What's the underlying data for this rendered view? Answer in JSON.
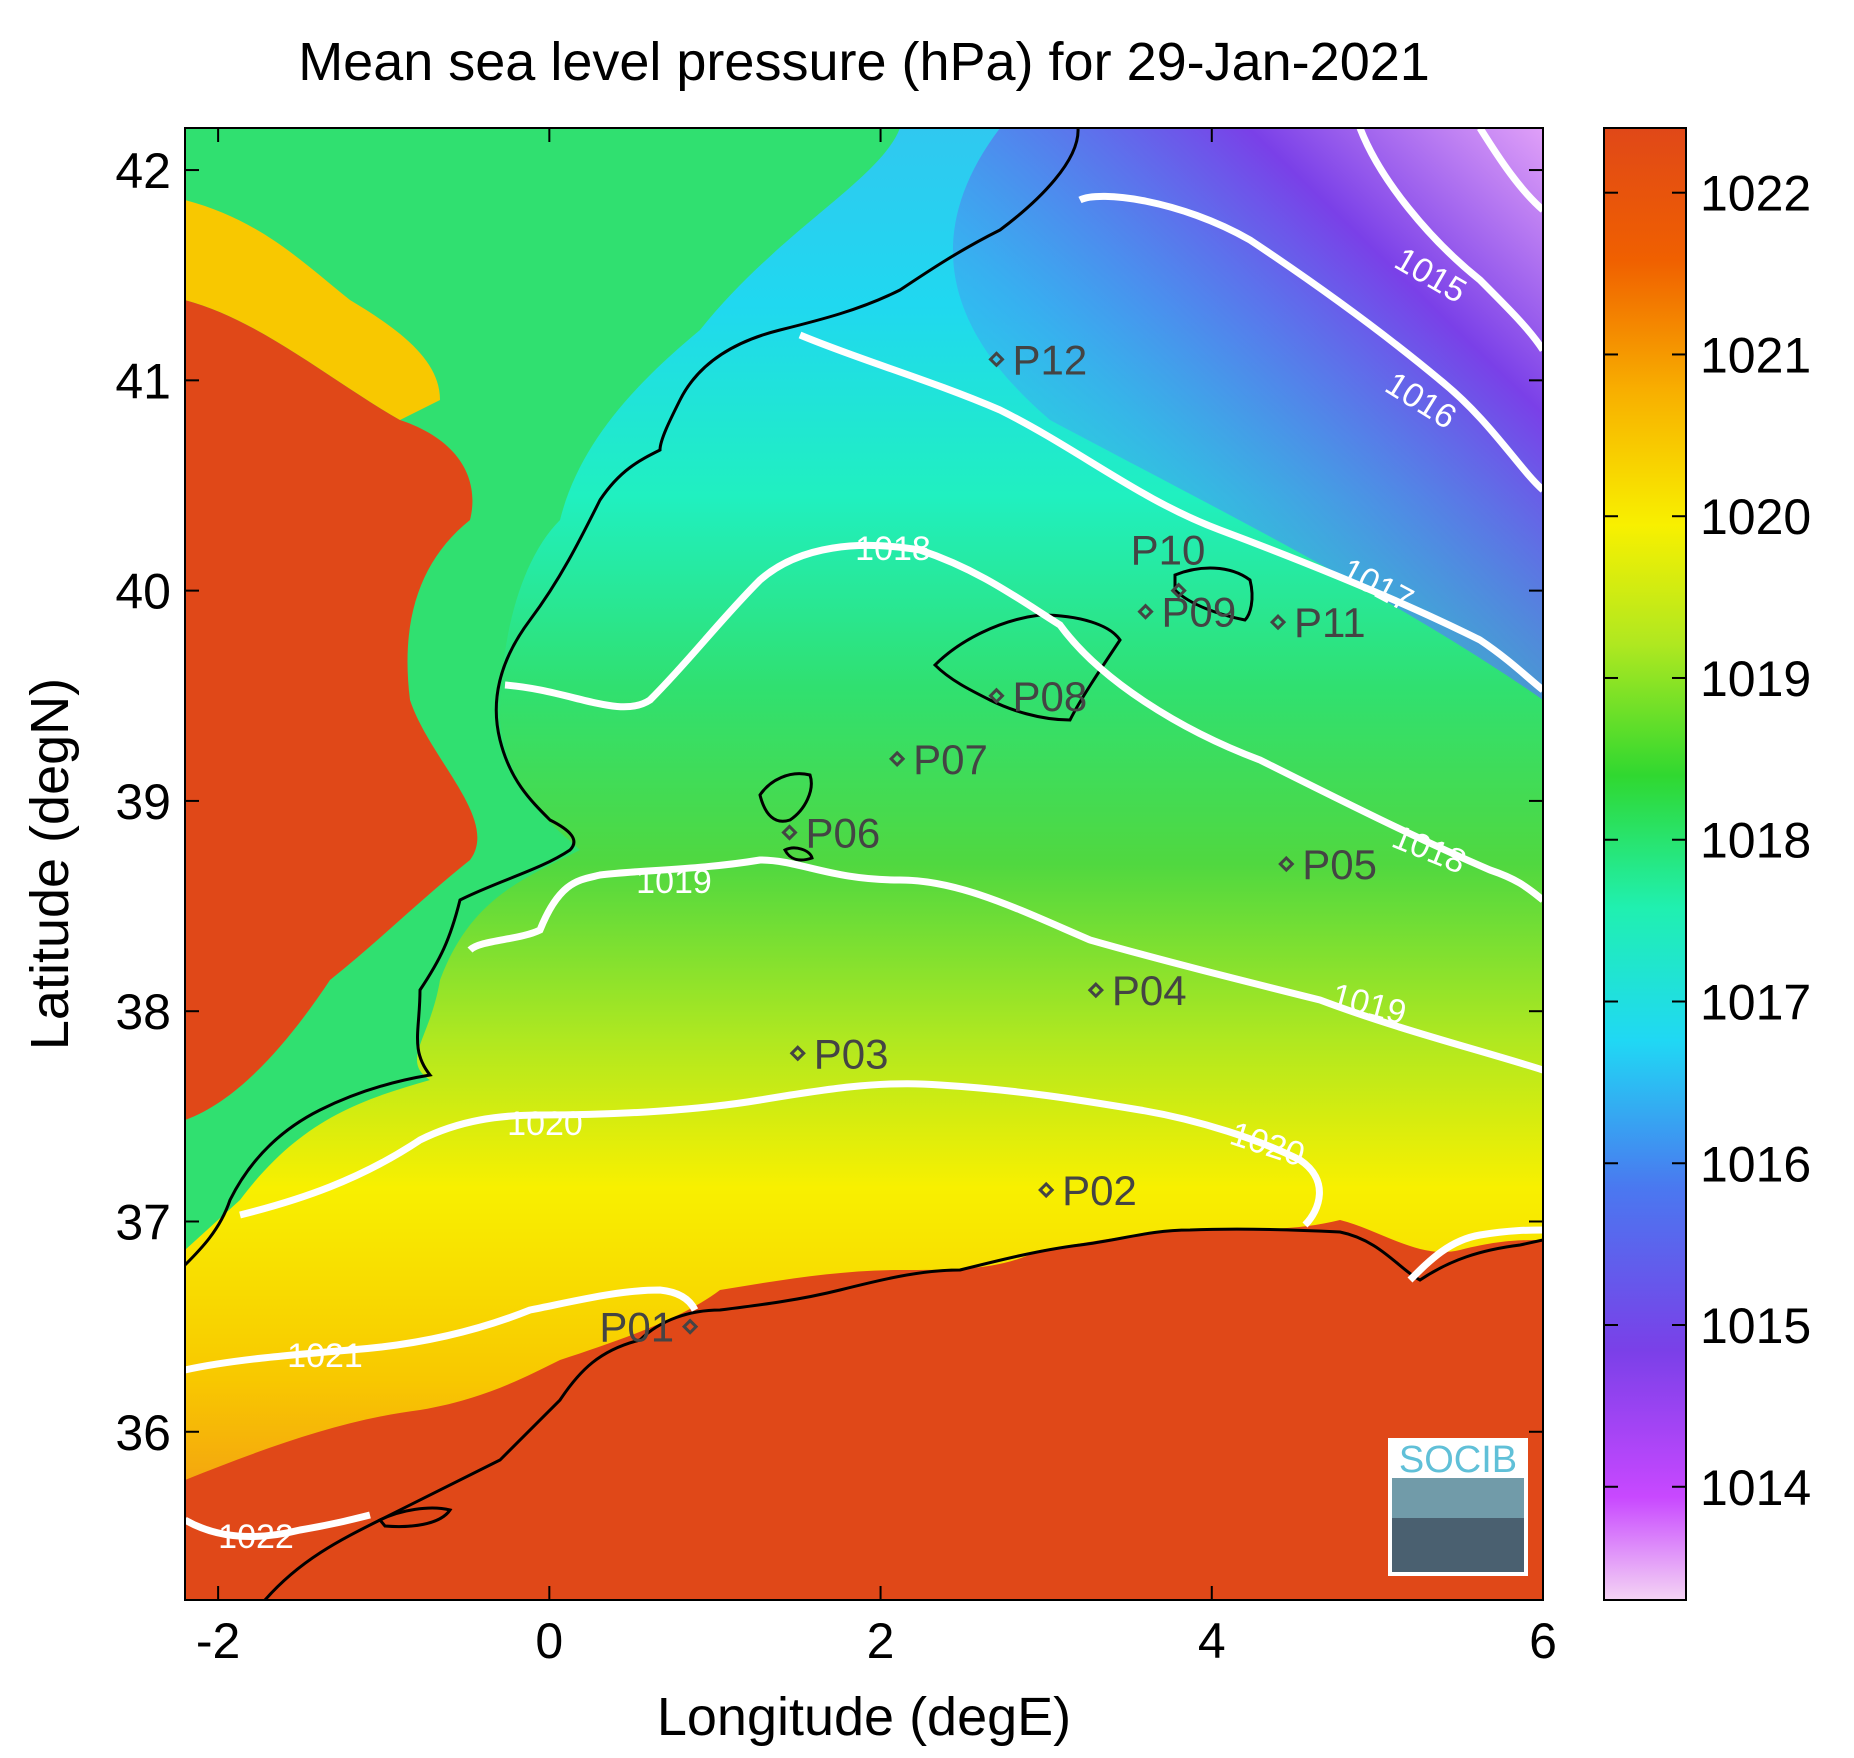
{
  "chart_data": {
    "type": "heatmap",
    "title": "Mean sea level pressure (hPa) for 29-Jan-2021",
    "xlabel": "Longitude (degE)",
    "ylabel": "Latitude (degN)",
    "xlim": [
      -2.2,
      6.0
    ],
    "ylim": [
      35.2,
      42.2
    ],
    "xticks": [
      -2,
      0,
      2,
      4,
      6
    ],
    "yticks": [
      36,
      37,
      38,
      39,
      40,
      41,
      42
    ],
    "colorbar": {
      "range": [
        1013.3,
        1022.4
      ],
      "ticks": [
        1014,
        1015,
        1016,
        1017,
        1018,
        1019,
        1020,
        1021,
        1022
      ],
      "colormap": [
        "#f0c8f0",
        "#c040ff",
        "#7a40e0",
        "#4a80f0",
        "#20e0f0",
        "#20f0b0",
        "#30d830",
        "#b0e820",
        "#f8f000",
        "#f8b000",
        "#f06000",
        "#e04818"
      ]
    },
    "contours": [
      {
        "level": 1015,
        "label": "1015"
      },
      {
        "level": 1016,
        "label": "1016"
      },
      {
        "level": 1017,
        "label": "1017"
      },
      {
        "level": 1018,
        "label": "1018"
      },
      {
        "level": 1019,
        "label": "1019"
      },
      {
        "level": 1020,
        "label": "1020"
      },
      {
        "level": 1021,
        "label": "1021"
      },
      {
        "level": 1022,
        "label": "1022"
      }
    ],
    "stations": [
      {
        "name": "P01",
        "lon": 0.85,
        "lat": 36.5
      },
      {
        "name": "P02",
        "lon": 3.0,
        "lat": 37.15
      },
      {
        "name": "P03",
        "lon": 1.5,
        "lat": 37.8
      },
      {
        "name": "P04",
        "lon": 3.3,
        "lat": 38.1
      },
      {
        "name": "P05",
        "lon": 4.45,
        "lat": 38.7
      },
      {
        "name": "P06",
        "lon": 1.45,
        "lat": 38.85
      },
      {
        "name": "P07",
        "lon": 2.1,
        "lat": 39.2
      },
      {
        "name": "P08",
        "lon": 2.7,
        "lat": 39.5
      },
      {
        "name": "P09",
        "lon": 3.6,
        "lat": 39.9
      },
      {
        "name": "P10",
        "lon": 3.8,
        "lat": 40.0
      },
      {
        "name": "P11",
        "lon": 4.4,
        "lat": 39.85
      },
      {
        "name": "P12",
        "lon": 2.7,
        "lat": 41.1
      }
    ]
  },
  "logo": {
    "text": "SOCIB"
  }
}
